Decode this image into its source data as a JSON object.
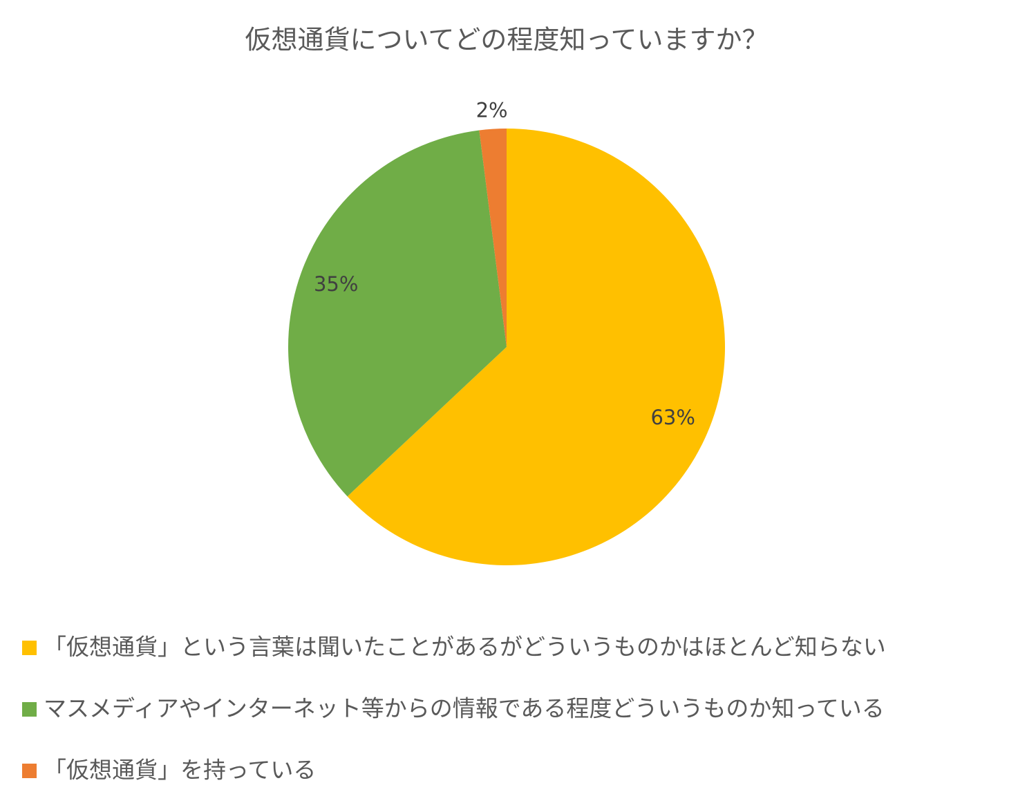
{
  "chart_data": {
    "type": "pie",
    "title": "仮想通貨についてどの程度知っていますか？",
    "categories": [
      "「仮想通貨」という言葉は聞いたことがあるがどういうものかはほとんど知らない",
      "マスメディアやインターネット等からの情報である程度どういうものか知っている",
      "「仮想通貨」を持っている"
    ],
    "values": [
      63,
      35,
      2
    ],
    "value_labels": [
      "63%",
      "35%",
      "2%"
    ],
    "colors": [
      "#ffc000",
      "#70ad47",
      "#ed7d31"
    ],
    "legend": "bottom"
  }
}
